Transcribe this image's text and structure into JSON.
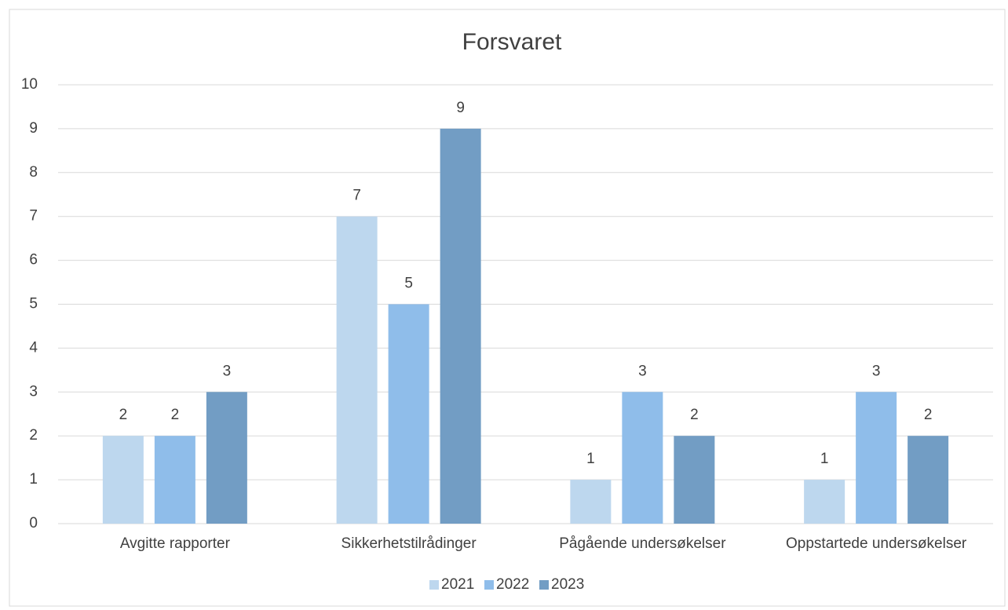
{
  "chart_data": {
    "type": "bar",
    "title": "Forsvaret",
    "categories": [
      "Avgitte rapporter",
      "Sikkerhetstilrådinger",
      "Pågående undersøkelser",
      "Oppstartede undersøkelser"
    ],
    "series": [
      {
        "name": "2021",
        "color": "#bdd7ee",
        "values": [
          2,
          7,
          1,
          1
        ]
      },
      {
        "name": "2022",
        "color": "#8fbdea",
        "values": [
          2,
          5,
          3,
          3
        ]
      },
      {
        "name": "2023",
        "color": "#729dc4",
        "values": [
          3,
          9,
          2,
          2
        ]
      }
    ],
    "ylim": [
      0,
      10
    ],
    "yticks": [
      0,
      1,
      2,
      3,
      4,
      5,
      6,
      7,
      8,
      9,
      10
    ],
    "grid": true,
    "legend": "bottom"
  }
}
